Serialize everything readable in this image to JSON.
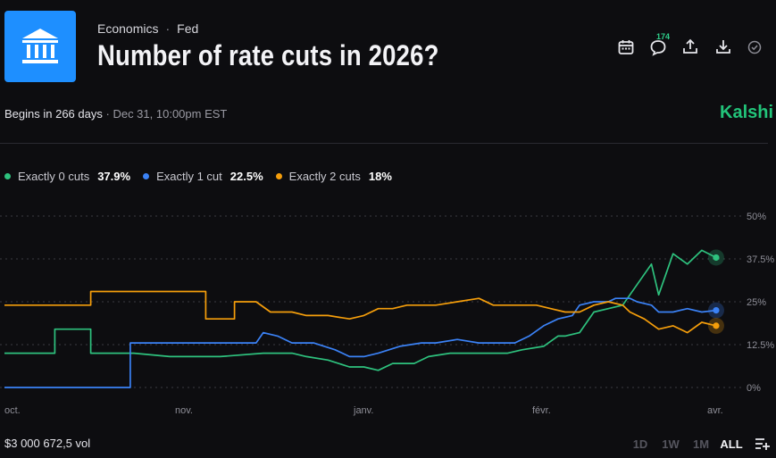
{
  "header": {
    "breadcrumbs": [
      "Economics",
      "Fed"
    ],
    "separator": "·",
    "title": "Number of rate cuts in 2026?",
    "comments_count": "174"
  },
  "icons": {
    "logo": "bank-building-icon",
    "toolbar": [
      "calendar-icon",
      "comment-icon",
      "share-icon",
      "download-icon",
      "check-circle-icon"
    ]
  },
  "meta": {
    "begins": "Begins in 266 days",
    "separator": "·",
    "date": "Dec 31, 10:00pm EST",
    "brand": "Kalshi"
  },
  "legend": [
    {
      "name": "Exactly 0 cuts",
      "value": "37.9%",
      "color": "#2ec27e"
    },
    {
      "name": "Exactly 1 cut",
      "value": "22.5%",
      "color": "#3b82f6"
    },
    {
      "name": "Exactly 2 cuts",
      "value": "18%",
      "color": "#f59e0b"
    }
  ],
  "footer": {
    "volume": "$3 000 672,5 vol",
    "ranges": [
      "1D",
      "1W",
      "1M",
      "ALL"
    ],
    "active_range": "ALL"
  },
  "chart_data": {
    "type": "line",
    "x_tick_labels": [
      "oct.",
      "nov.",
      "janv.",
      "févr.",
      "avr."
    ],
    "y_tick_labels": [
      "50%",
      "37.5%",
      "25%",
      "12.5%",
      "0%"
    ],
    "ylim": [
      0,
      50
    ],
    "xlim": [
      0,
      100
    ],
    "grid": true,
    "series": [
      {
        "name": "Exactly 0 cuts",
        "color": "#2ec27e",
        "points": [
          [
            0,
            10
          ],
          [
            7,
            10
          ],
          [
            7,
            17
          ],
          [
            12,
            17
          ],
          [
            12,
            10
          ],
          [
            18,
            10
          ],
          [
            23,
            9
          ],
          [
            30,
            9
          ],
          [
            36,
            10
          ],
          [
            40,
            10
          ],
          [
            42,
            9
          ],
          [
            45,
            8
          ],
          [
            48,
            6
          ],
          [
            50,
            6
          ],
          [
            52,
            5
          ],
          [
            54,
            7
          ],
          [
            57,
            7
          ],
          [
            59,
            9
          ],
          [
            62,
            10
          ],
          [
            65,
            10
          ],
          [
            68,
            10
          ],
          [
            70,
            10
          ],
          [
            72,
            11
          ],
          [
            75,
            12
          ],
          [
            77,
            15
          ],
          [
            78,
            15
          ],
          [
            80,
            16
          ],
          [
            82,
            22
          ],
          [
            84,
            23
          ],
          [
            86,
            24
          ],
          [
            88,
            30
          ],
          [
            90,
            36
          ],
          [
            91,
            27
          ],
          [
            93,
            39
          ],
          [
            95,
            36
          ],
          [
            97,
            40
          ],
          [
            99,
            37.9
          ]
        ]
      },
      {
        "name": "Exactly 1 cut",
        "color": "#3b82f6",
        "points": [
          [
            0,
            0
          ],
          [
            17.5,
            0
          ],
          [
            17.5,
            13
          ],
          [
            35,
            13
          ],
          [
            36,
            16
          ],
          [
            38,
            15
          ],
          [
            40,
            13
          ],
          [
            43,
            13
          ],
          [
            46,
            11
          ],
          [
            48,
            9
          ],
          [
            50,
            9
          ],
          [
            52,
            10
          ],
          [
            55,
            12
          ],
          [
            58,
            13
          ],
          [
            60,
            13
          ],
          [
            63,
            14
          ],
          [
            66,
            13
          ],
          [
            69,
            13
          ],
          [
            71,
            13
          ],
          [
            73,
            15
          ],
          [
            75,
            18
          ],
          [
            77,
            20
          ],
          [
            79,
            21
          ],
          [
            80,
            24
          ],
          [
            82,
            25
          ],
          [
            84,
            25
          ],
          [
            85,
            26
          ],
          [
            87,
            26
          ],
          [
            88,
            25
          ],
          [
            90,
            24
          ],
          [
            91,
            22
          ],
          [
            93,
            22
          ],
          [
            95,
            23
          ],
          [
            97,
            22
          ],
          [
            99,
            22.5
          ]
        ]
      },
      {
        "name": "Exactly 2 cuts",
        "color": "#f59e0b",
        "points": [
          [
            0,
            24
          ],
          [
            12,
            24
          ],
          [
            12,
            28
          ],
          [
            28,
            28
          ],
          [
            28,
            20
          ],
          [
            32,
            20
          ],
          [
            32,
            25
          ],
          [
            35,
            25
          ],
          [
            37,
            22
          ],
          [
            40,
            22
          ],
          [
            42,
            21
          ],
          [
            45,
            21
          ],
          [
            48,
            20
          ],
          [
            50,
            21
          ],
          [
            52,
            23
          ],
          [
            54,
            23
          ],
          [
            56,
            24
          ],
          [
            58,
            24
          ],
          [
            60,
            24
          ],
          [
            63,
            25
          ],
          [
            66,
            26
          ],
          [
            68,
            24
          ],
          [
            70,
            24
          ],
          [
            72,
            24
          ],
          [
            74,
            24
          ],
          [
            76,
            23
          ],
          [
            78,
            22
          ],
          [
            80,
            22
          ],
          [
            82,
            24
          ],
          [
            84,
            25
          ],
          [
            86,
            24
          ],
          [
            87,
            22
          ],
          [
            89,
            20
          ],
          [
            91,
            17
          ],
          [
            93,
            18
          ],
          [
            95,
            16
          ],
          [
            97,
            19
          ],
          [
            99,
            18
          ]
        ]
      }
    ]
  }
}
